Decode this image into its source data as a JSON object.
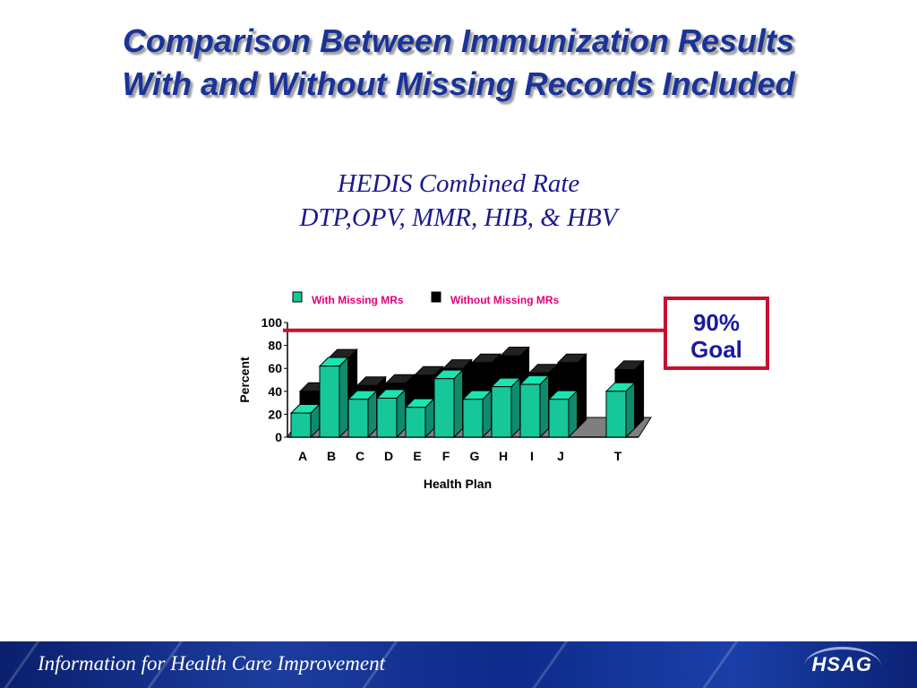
{
  "slide": {
    "title_line1": "Comparison Between Immunization Results",
    "title_line2": "With and Without Missing Records Included",
    "subtitle_line1": "HEDIS Combined Rate",
    "subtitle_line2": "DTP,OPV, MMR, HIB, & HBV",
    "goal_line1": "90%",
    "goal_line2": "Goal",
    "footer_text": "Information for Health Care Improvement",
    "logo_text": "HSAG"
  },
  "colors": {
    "title": "#1a3399",
    "with_missing": "#16c79a",
    "without_missing": "#000000",
    "legend_text": "#e0007a",
    "goal_line": "#c8102e"
  },
  "chart_data": {
    "type": "bar",
    "ylabel": "Percent",
    "xlabel": "Health Plan",
    "ylim": [
      0,
      100
    ],
    "y_ticks": [
      "0",
      "20",
      "40",
      "60",
      "80",
      "100"
    ],
    "categories": [
      "A",
      "B",
      "C",
      "D",
      "E",
      "F",
      "G",
      "H",
      "I",
      "J",
      "",
      "T"
    ],
    "series": [
      {
        "name": "With Missing MRs",
        "values": [
          21,
          62,
          33,
          34,
          26,
          51,
          33,
          44,
          46,
          33,
          null,
          40
        ]
      },
      {
        "name": "Without Missing MRs",
        "values": [
          40,
          69,
          45,
          47,
          54,
          60,
          65,
          71,
          56,
          65,
          null,
          59
        ]
      }
    ],
    "goal_value": 90,
    "legend_position": "top"
  }
}
